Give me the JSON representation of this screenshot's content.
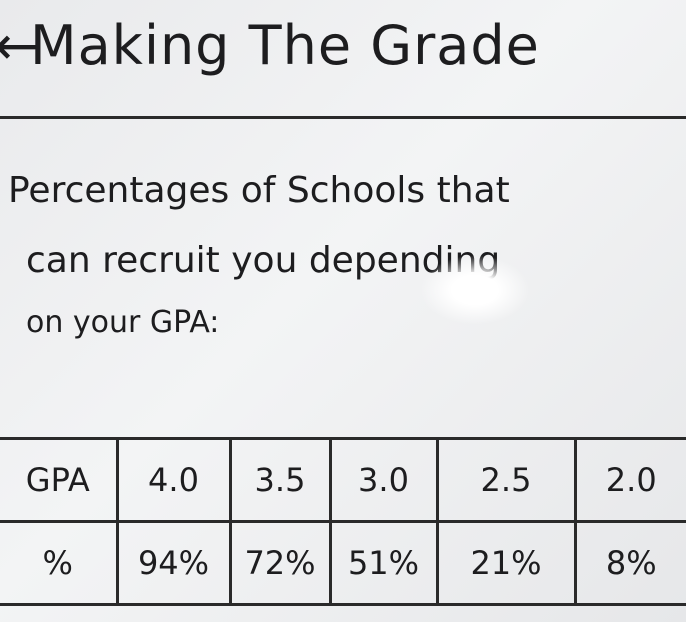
{
  "header": {
    "title": "Making The Grade"
  },
  "subtitle": {
    "lines": [
      "Percentages of Schools that",
      "can recruit you depending",
      "on your GPA:"
    ]
  },
  "table": {
    "rows": [
      [
        "GPA",
        "4.0",
        "3.5",
        "3.0",
        "2.5",
        "2.0"
      ],
      [
        "%",
        "94%",
        "72%",
        "51%",
        "21%",
        "8%"
      ]
    ]
  }
}
